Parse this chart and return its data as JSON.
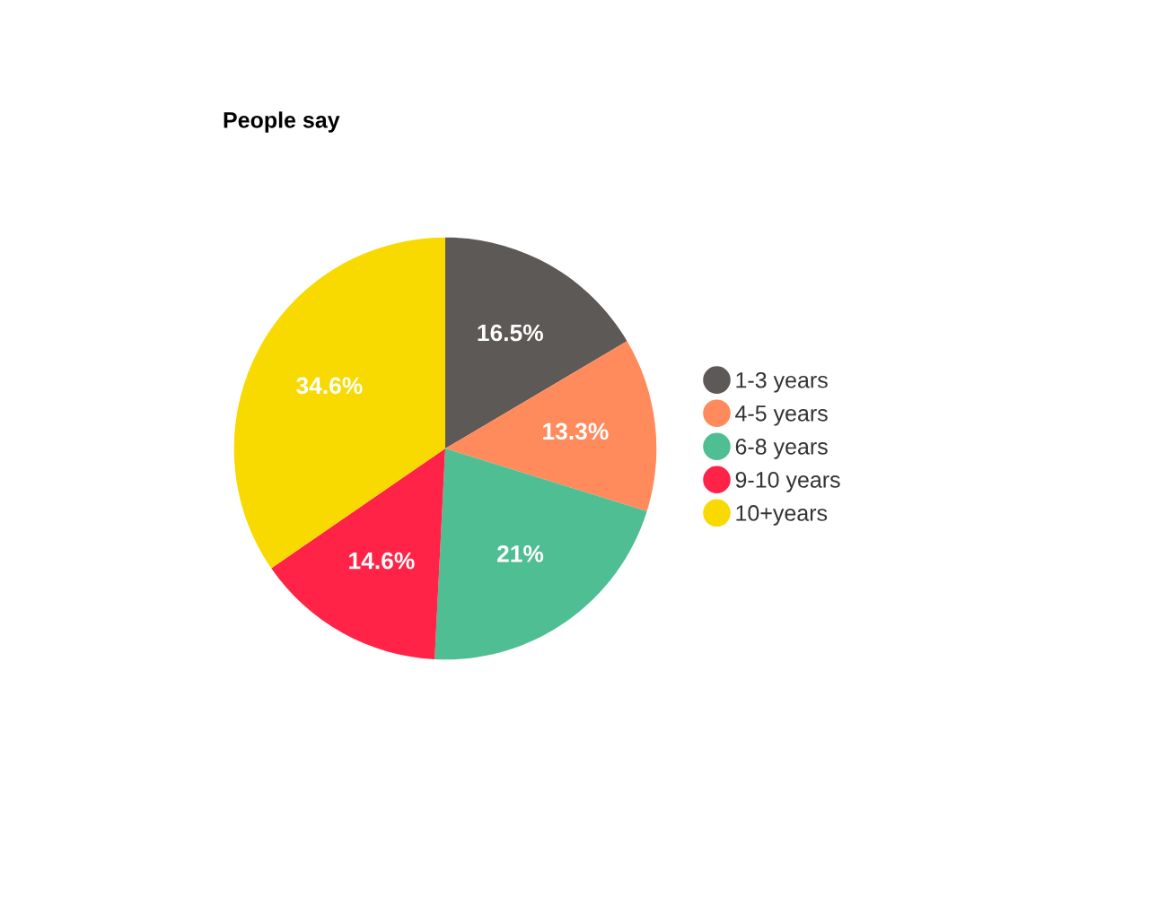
{
  "chart_data": {
    "type": "pie",
    "title": "People say",
    "categories": [
      "1-3 years",
      "4-5 years",
      "6-8 years",
      "9-10 years",
      "10+years"
    ],
    "values": [
      16.5,
      13.3,
      21,
      14.6,
      34.6
    ],
    "colors": [
      "#5d5957",
      "#ff8a5c",
      "#4fbe92",
      "#ff2347",
      "#f8d900"
    ],
    "value_labels": [
      "16.5%",
      "13.3%",
      "21%",
      "14.6%",
      "34.6%"
    ],
    "legend": "right",
    "marker": "circle"
  }
}
